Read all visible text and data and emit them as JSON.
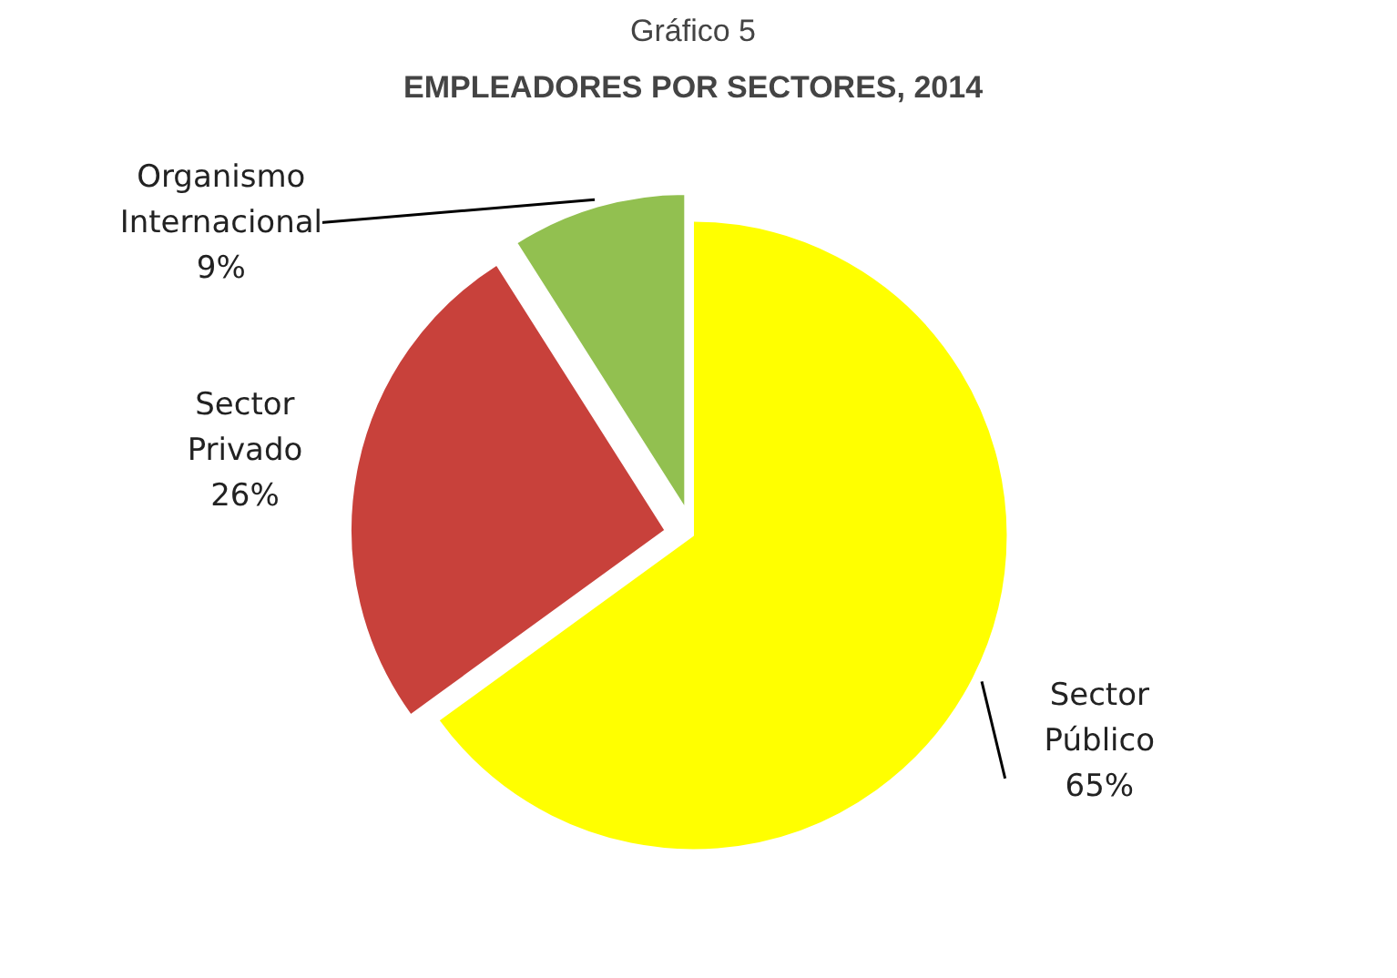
{
  "chart_data": {
    "type": "pie",
    "title": "EMPLEADORES POR SECTORES, 2014",
    "subtitle": "Gráfico 5",
    "categories": [
      "Sector Público",
      "Sector Privado",
      "Organismo Internacional"
    ],
    "values": [
      65,
      26,
      9
    ],
    "value_labels": [
      "65%",
      "26%",
      "9%"
    ],
    "colors": [
      "#ffff00",
      "#c8413b",
      "#92c050"
    ]
  }
}
